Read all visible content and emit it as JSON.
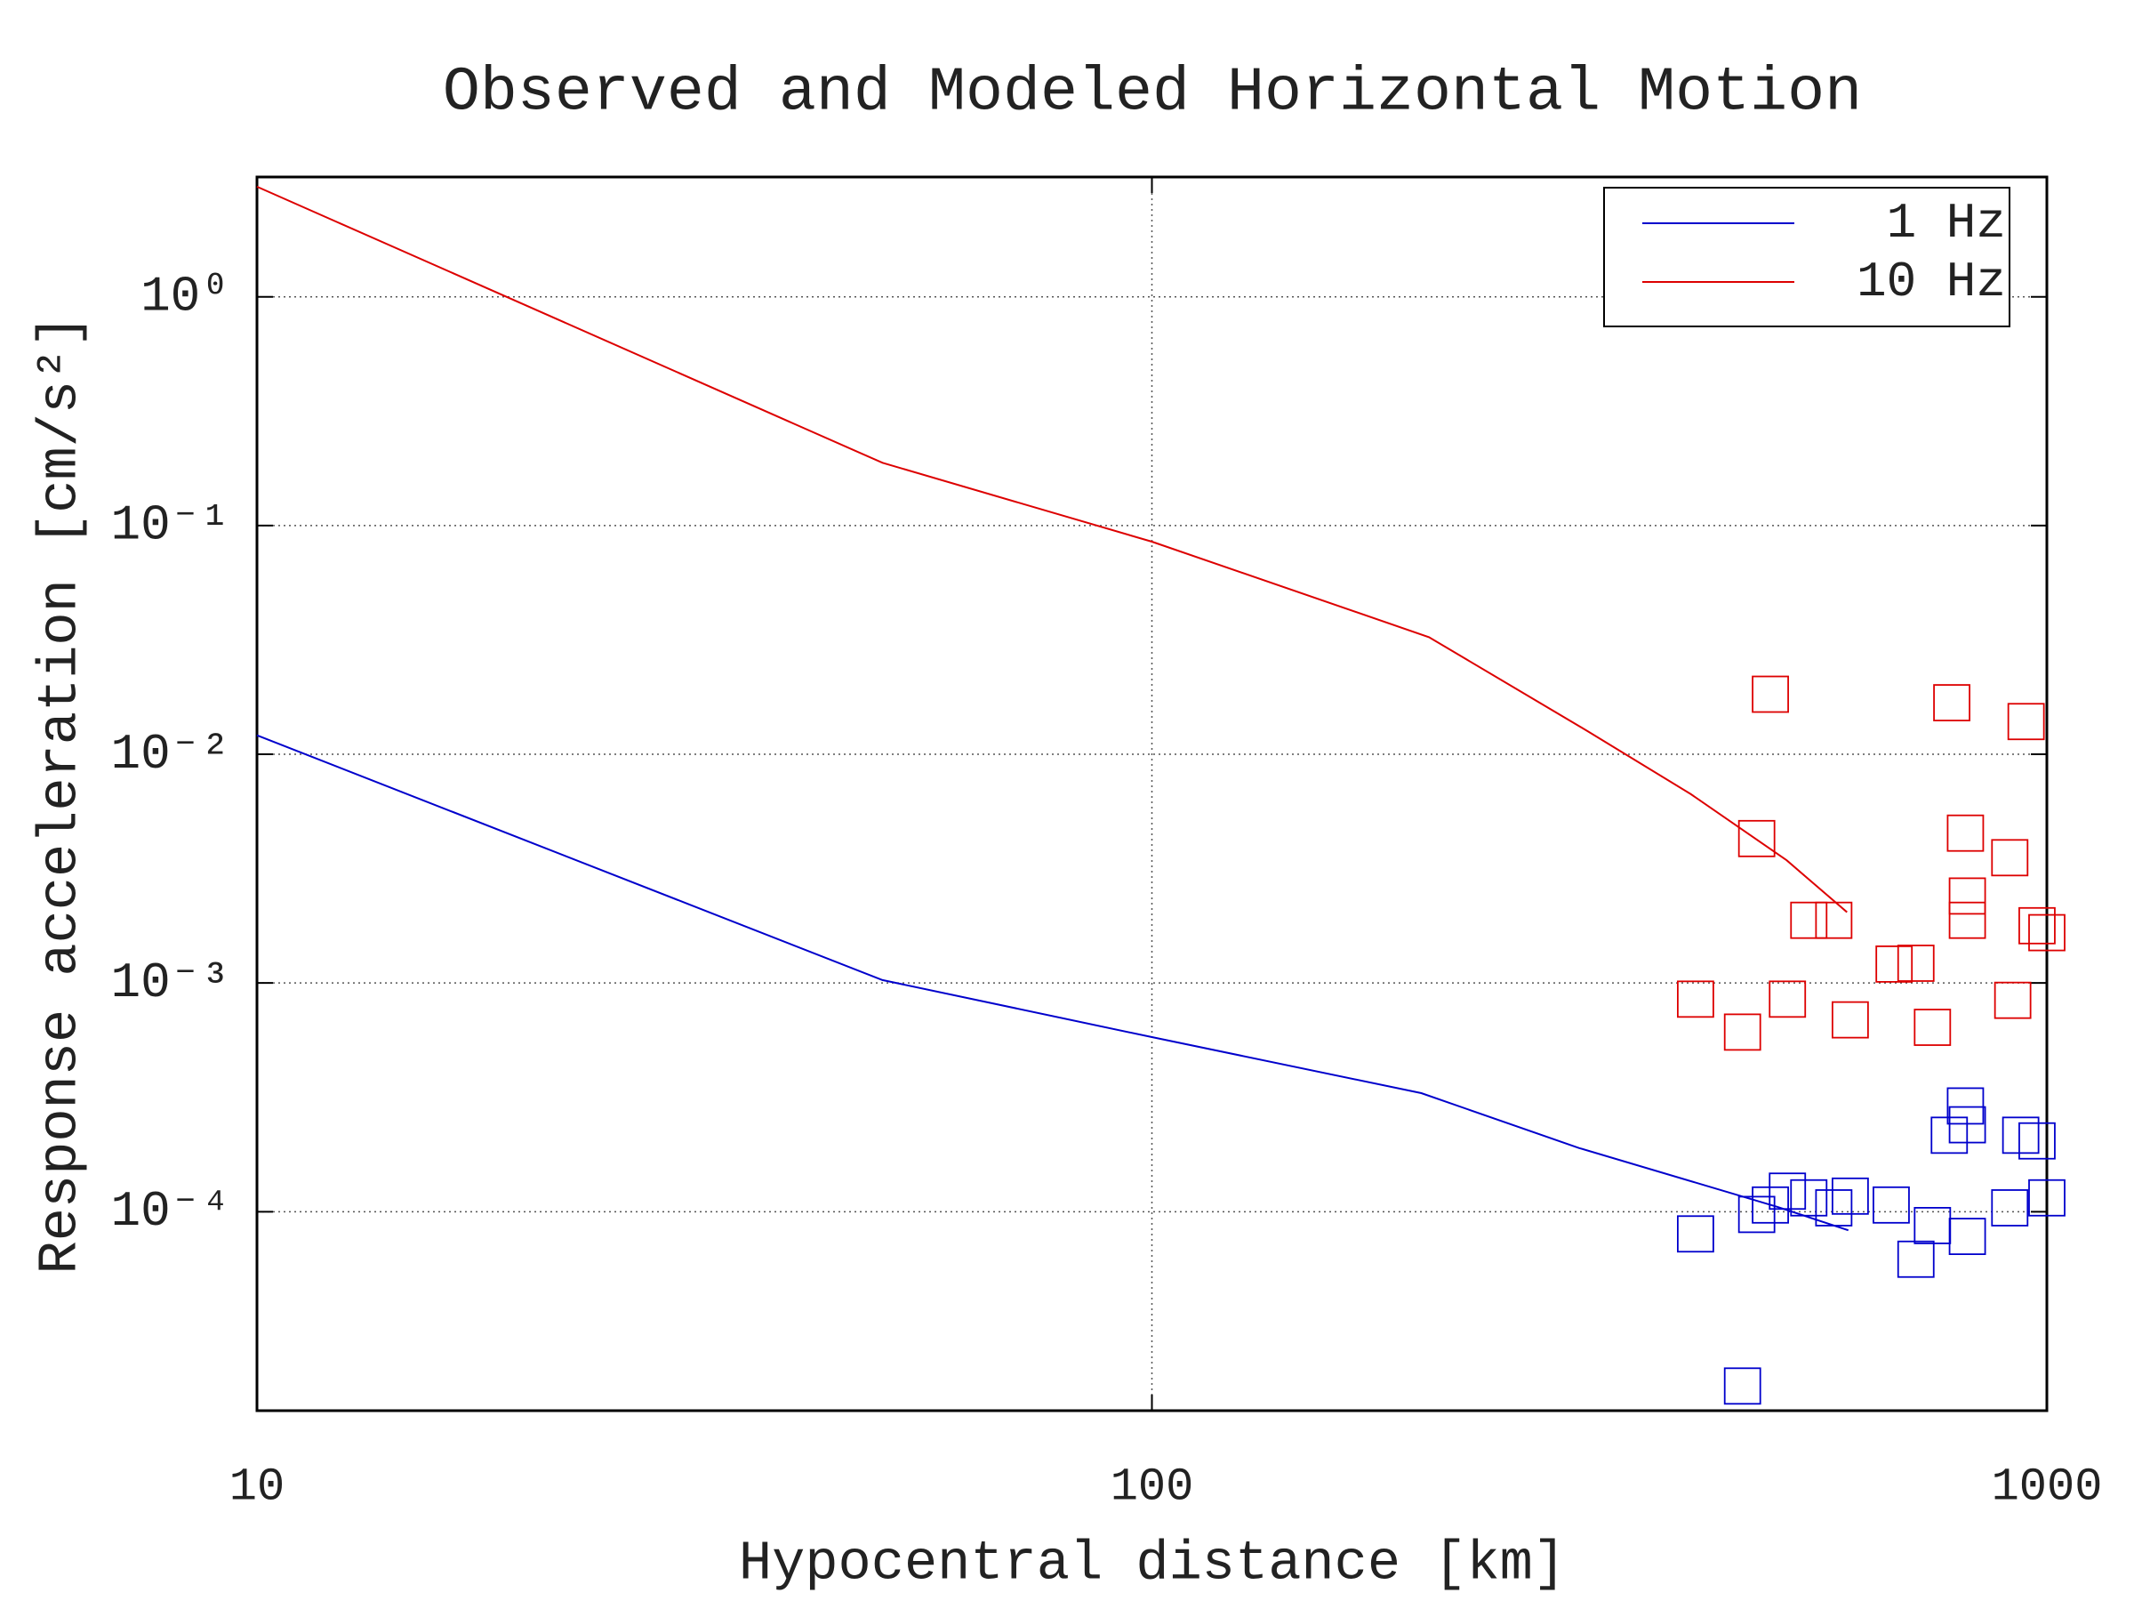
{
  "chart_data": {
    "type": "line",
    "title": "Observed and Modeled Horizontal Motion",
    "x_label": "Hypocentral distance [km]",
    "y_label": "Response acceleration [cm/s²]",
    "xlog": true,
    "ylog": true,
    "xlim": [
      10,
      1000
    ],
    "ylim": [
      1.35e-05,
      3.34
    ],
    "xticks": [
      10,
      100,
      1000
    ],
    "yticks": [
      {
        "value": 1,
        "label": "10⁰"
      },
      {
        "value": 0.1,
        "label": "10⁻¹"
      },
      {
        "value": 0.01,
        "label": "10⁻²"
      },
      {
        "value": 0.001,
        "label": "10⁻³"
      },
      {
        "value": 0.0001,
        "label": "10⁻⁴"
      }
    ],
    "grid": true,
    "legend": "upper right",
    "series": [
      {
        "name": "1 Hz",
        "type": "line",
        "color": "#0000cc",
        "x": [
          10,
          50,
          100,
          200,
          300,
          500,
          600
        ],
        "values": [
          0.0121,
          0.00103,
          0.00058,
          0.00033,
          0.00019,
          0.000105,
          8.3e-05
        ]
      },
      {
        "name": "10 Hz",
        "type": "line",
        "color": "#dd0000",
        "x": [
          10,
          50,
          100,
          204,
          307,
          400,
          512,
          598
        ],
        "values": [
          3.03,
          0.188,
          0.085,
          0.0325,
          0.0126,
          0.0067,
          0.00344,
          0.00204
        ]
      },
      {
        "type": "scatter",
        "marker": "square",
        "color": "#dd0000",
        "x": [
          491,
          783,
          948,
          474,
          811,
          909,
          815,
          815,
          542,
          578,
          975,
          1000,
          675,
          714,
          405,
          513,
          916,
          457,
          603,
          745
        ],
        "values": [
          0.0183,
          0.0168,
          0.0139,
          0.00428,
          0.00452,
          0.00353,
          0.0024,
          0.00188,
          0.00188,
          0.00188,
          0.00178,
          0.00166,
          0.00121,
          0.00122,
          0.00085,
          0.00085,
          0.00084,
          0.00061,
          0.00069,
          0.00064
        ]
      },
      {
        "type": "scatter",
        "marker": "square",
        "color": "#0000cc",
        "x": [
          811,
          815,
          778,
          935,
          975,
          513,
          542,
          603,
          670,
          491,
          578,
          909,
          1000,
          474,
          745,
          405,
          815,
          714,
          457
        ],
        "values": [
          0.00029,
          0.00024,
          0.000216,
          0.000216,
          0.000204,
          0.000123,
          0.000115,
          0.000117,
          0.000107,
          0.000107,
          0.000104,
          0.000104,
          0.000115,
          9.73e-05,
          8.7e-05,
          8e-05,
          7.8e-05,
          6.2e-05,
          1.73e-05
        ]
      }
    ]
  }
}
